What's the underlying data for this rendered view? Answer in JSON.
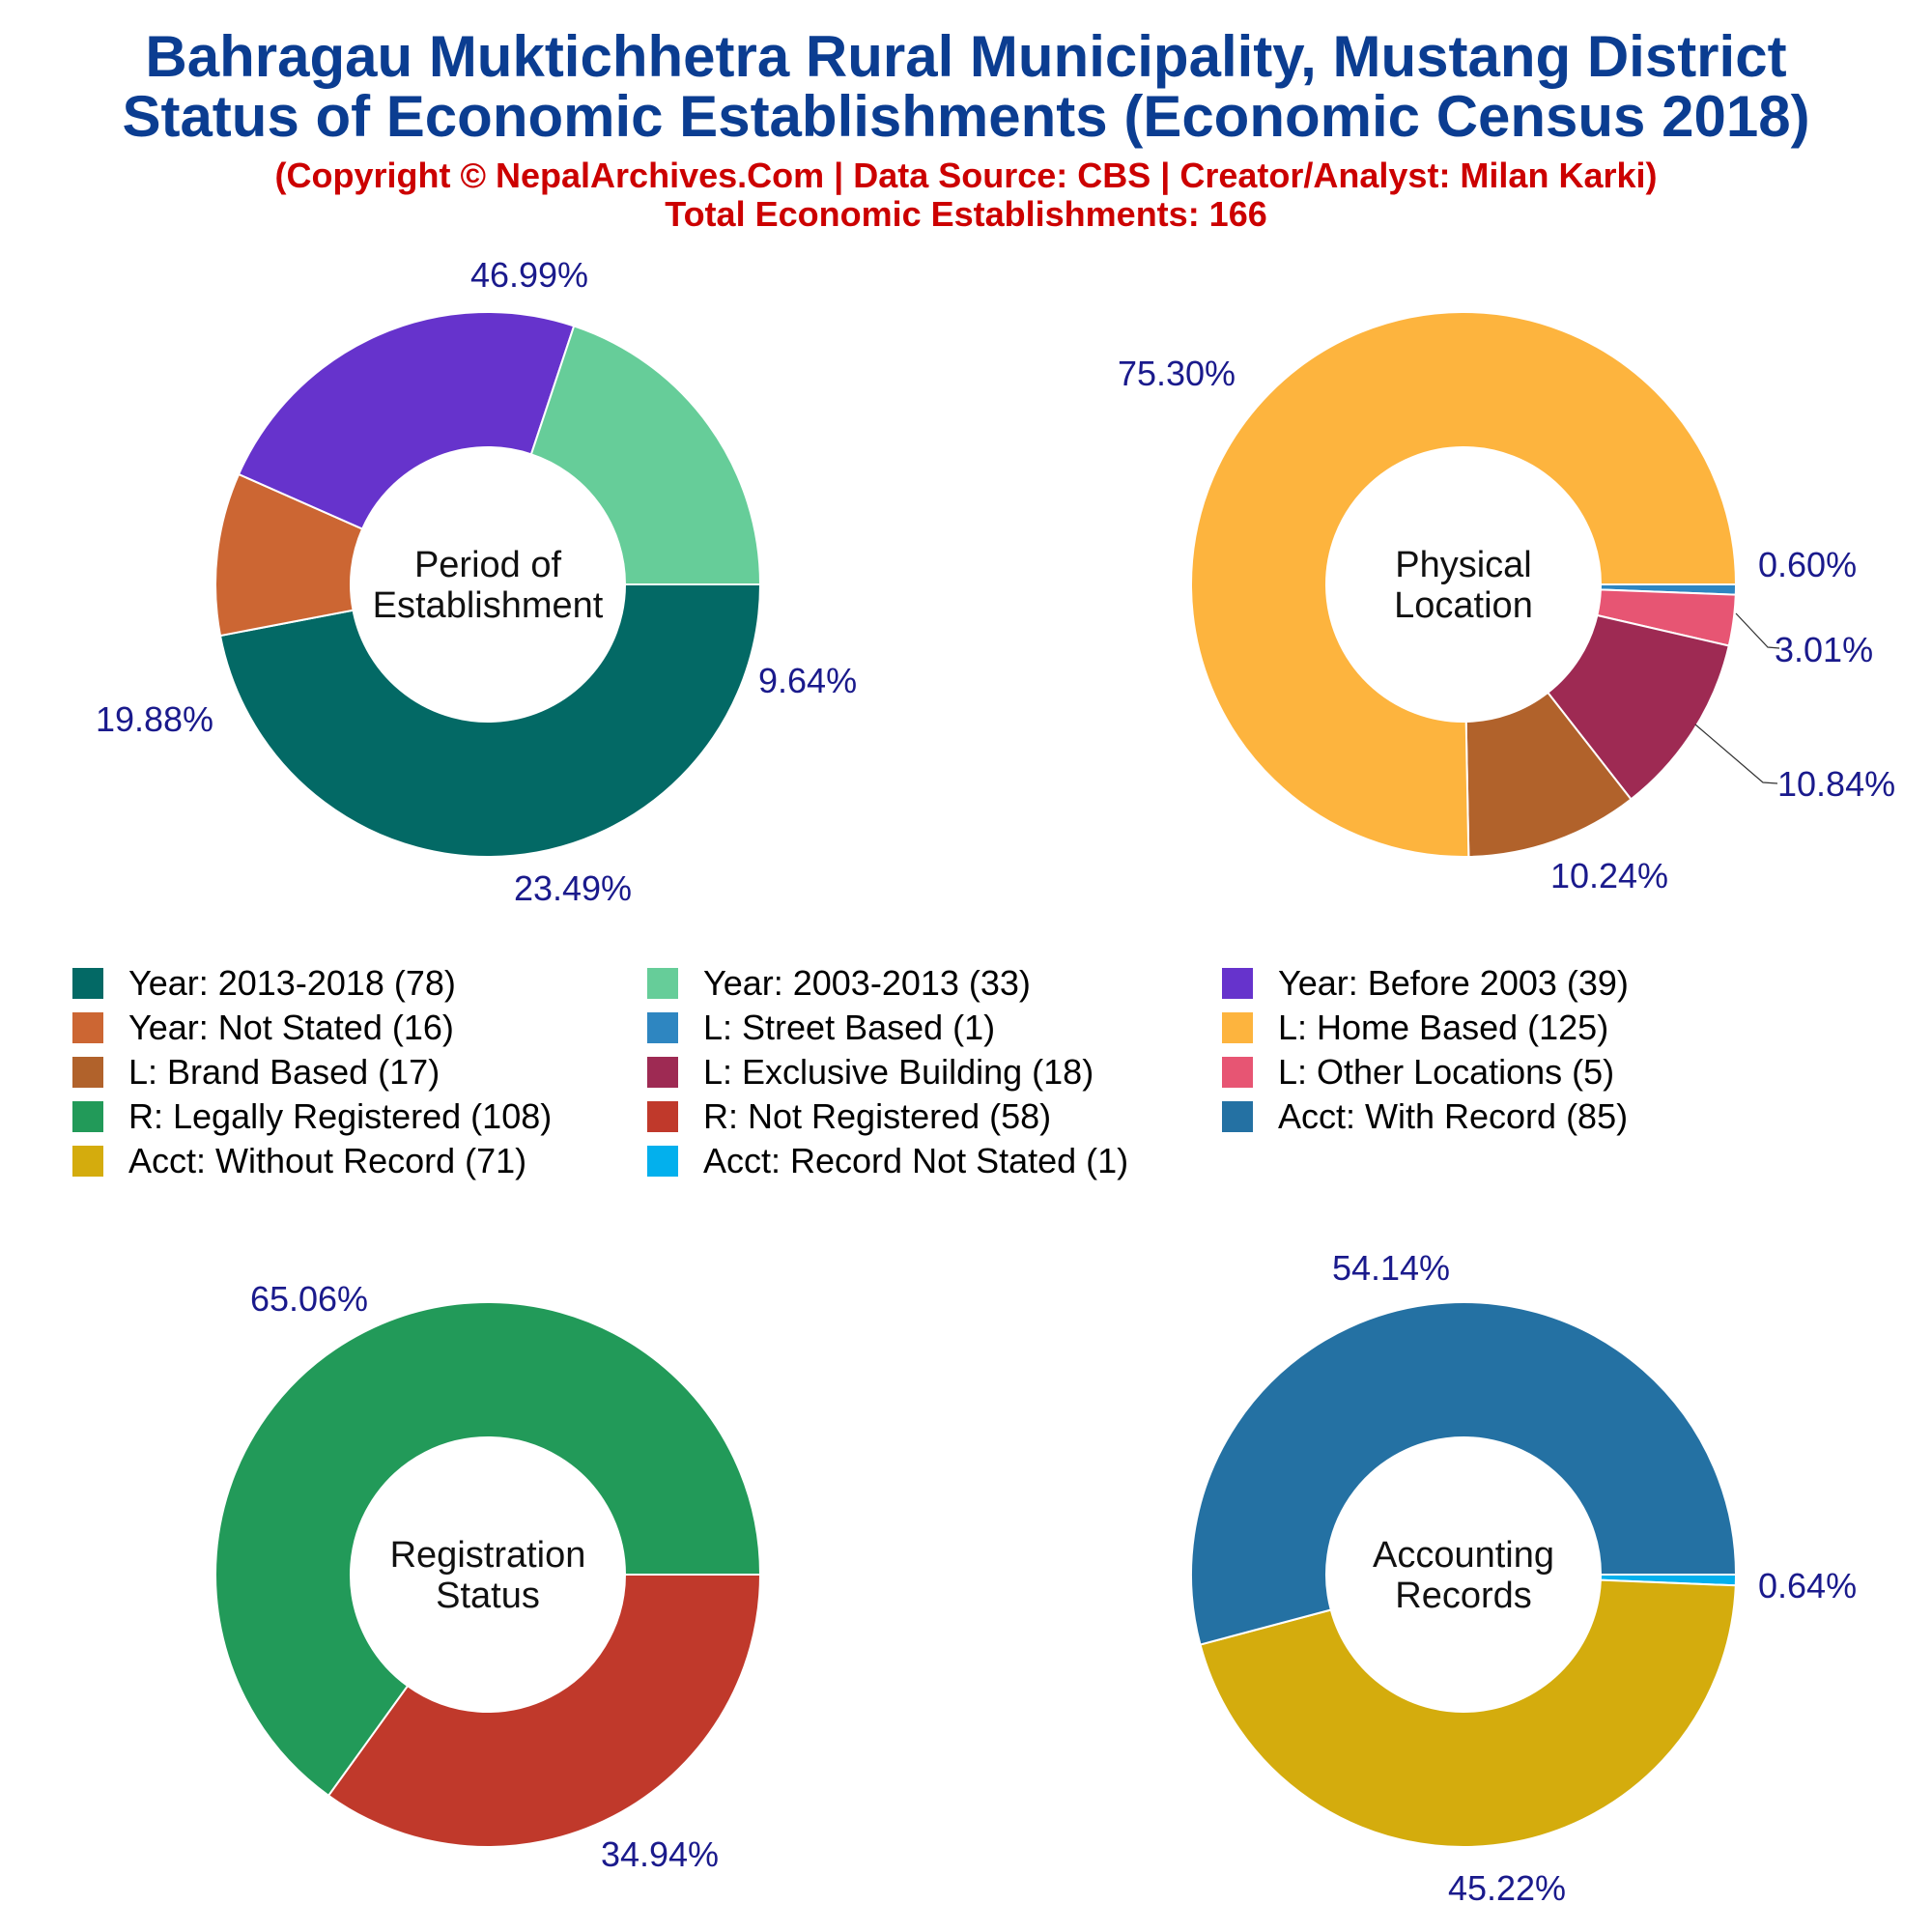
{
  "header": {
    "title_line1": "Bahragau Muktichhetra Rural Municipality, Mustang District",
    "title_line2": "Status of Economic Establishments (Economic Census 2018)",
    "copyright": "(Copyright © NepalArchives.Com | Data Source: CBS | Creator/Analyst: Milan Karki)",
    "total": "Total Economic Establishments: 166"
  },
  "legend": [
    {
      "label": "Year: 2013-2018 (78)",
      "color": "#036965"
    },
    {
      "label": "Year: 2003-2013 (33)",
      "color": "#66cd99"
    },
    {
      "label": "Year: Before 2003 (39)",
      "color": "#6633cc"
    },
    {
      "label": "Year: Not Stated (16)",
      "color": "#cc6633"
    },
    {
      "label": "L: Street Based (1)",
      "color": "#2e86c1"
    },
    {
      "label": "L: Home Based (125)",
      "color": "#fdb43e"
    },
    {
      "label": "L: Brand Based (17)",
      "color": "#b1622b"
    },
    {
      "label": "L: Exclusive Building (18)",
      "color": "#9e2a53"
    },
    {
      "label": "L: Other Locations (5)",
      "color": "#e75573"
    },
    {
      "label": "R: Legally Registered (108)",
      "color": "#229a59"
    },
    {
      "label": "R: Not Registered (58)",
      "color": "#c0392b"
    },
    {
      "label": "Acct: With Record (85)",
      "color": "#2471a3"
    },
    {
      "label": "Acct: Without Record (71)",
      "color": "#d4ac0d"
    },
    {
      "label": "Acct: Record Not Stated (1)",
      "color": "#03b0ed"
    }
  ],
  "chart_data": [
    {
      "type": "pie",
      "center_label": [
        "Period of",
        "Establishment"
      ],
      "slices": [
        {
          "name": "Year: 2013-2018",
          "value": 78,
          "label": "46.99%",
          "color": "#036965"
        },
        {
          "name": "Year: Not Stated",
          "value": 16,
          "label": "9.64%",
          "color": "#cc6633"
        },
        {
          "name": "Year: Before 2003",
          "value": 39,
          "label": "23.49%",
          "color": "#6633cc"
        },
        {
          "name": "Year: 2003-2013",
          "value": 33,
          "label": "19.88%",
          "color": "#66cd99"
        }
      ]
    },
    {
      "type": "pie",
      "center_label": [
        "Physical",
        "Location"
      ],
      "slices": [
        {
          "name": "L: Street Based",
          "value": 1,
          "label": "0.60%",
          "color": "#2e86c1"
        },
        {
          "name": "L: Other Locations",
          "value": 5,
          "label": "3.01%",
          "color": "#e75573"
        },
        {
          "name": "L: Exclusive Building",
          "value": 18,
          "label": "10.84%",
          "color": "#9e2a53"
        },
        {
          "name": "L: Brand Based",
          "value": 17,
          "label": "10.24%",
          "color": "#b1622b"
        },
        {
          "name": "L: Home Based",
          "value": 125,
          "label": "75.30%",
          "color": "#fdb43e"
        }
      ]
    },
    {
      "type": "pie",
      "center_label": [
        "Registration",
        "Status"
      ],
      "slices": [
        {
          "name": "R: Not Registered",
          "value": 58,
          "label": "34.94%",
          "color": "#c0392b"
        },
        {
          "name": "R: Legally Registered",
          "value": 108,
          "label": "65.06%",
          "color": "#229a59"
        }
      ]
    },
    {
      "type": "pie",
      "center_label": [
        "Accounting",
        "Records"
      ],
      "slices": [
        {
          "name": "Acct: Record Not Stated",
          "value": 1,
          "label": "0.64%",
          "color": "#03b0ed"
        },
        {
          "name": "Acct: Without Record",
          "value": 71,
          "label": "45.22%",
          "color": "#d4ac0d"
        },
        {
          "name": "Acct: With Record",
          "value": 85,
          "label": "54.14%",
          "color": "#2471a3"
        }
      ]
    }
  ]
}
